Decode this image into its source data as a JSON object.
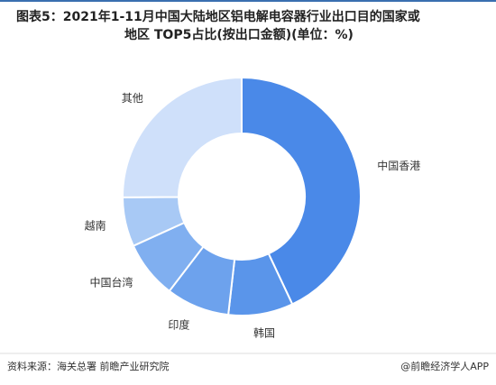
{
  "chart_data": {
    "type": "donut",
    "title": [
      "图表5：2021年1-11月中国大陆地区铝电解电容器行业出口目的国家或",
      "地区 TOP5占比(按出口金额)(单位：%)"
    ],
    "categories": [
      "中国香港",
      "韩国",
      "印度",
      "中国台湾",
      "越南",
      "其他"
    ],
    "values": [
      43,
      8.8,
      8.6,
      7.8,
      6.7,
      25.1
    ],
    "colors": [
      "#4a89e8",
      "#5a95ea",
      "#6da2ed",
      "#80aff0",
      "#a8c9f5",
      "#cfe0fa"
    ],
    "source": "资料来源：海关总署 前瞻产业研究院",
    "credit": "@前瞻经济学人APP"
  }
}
